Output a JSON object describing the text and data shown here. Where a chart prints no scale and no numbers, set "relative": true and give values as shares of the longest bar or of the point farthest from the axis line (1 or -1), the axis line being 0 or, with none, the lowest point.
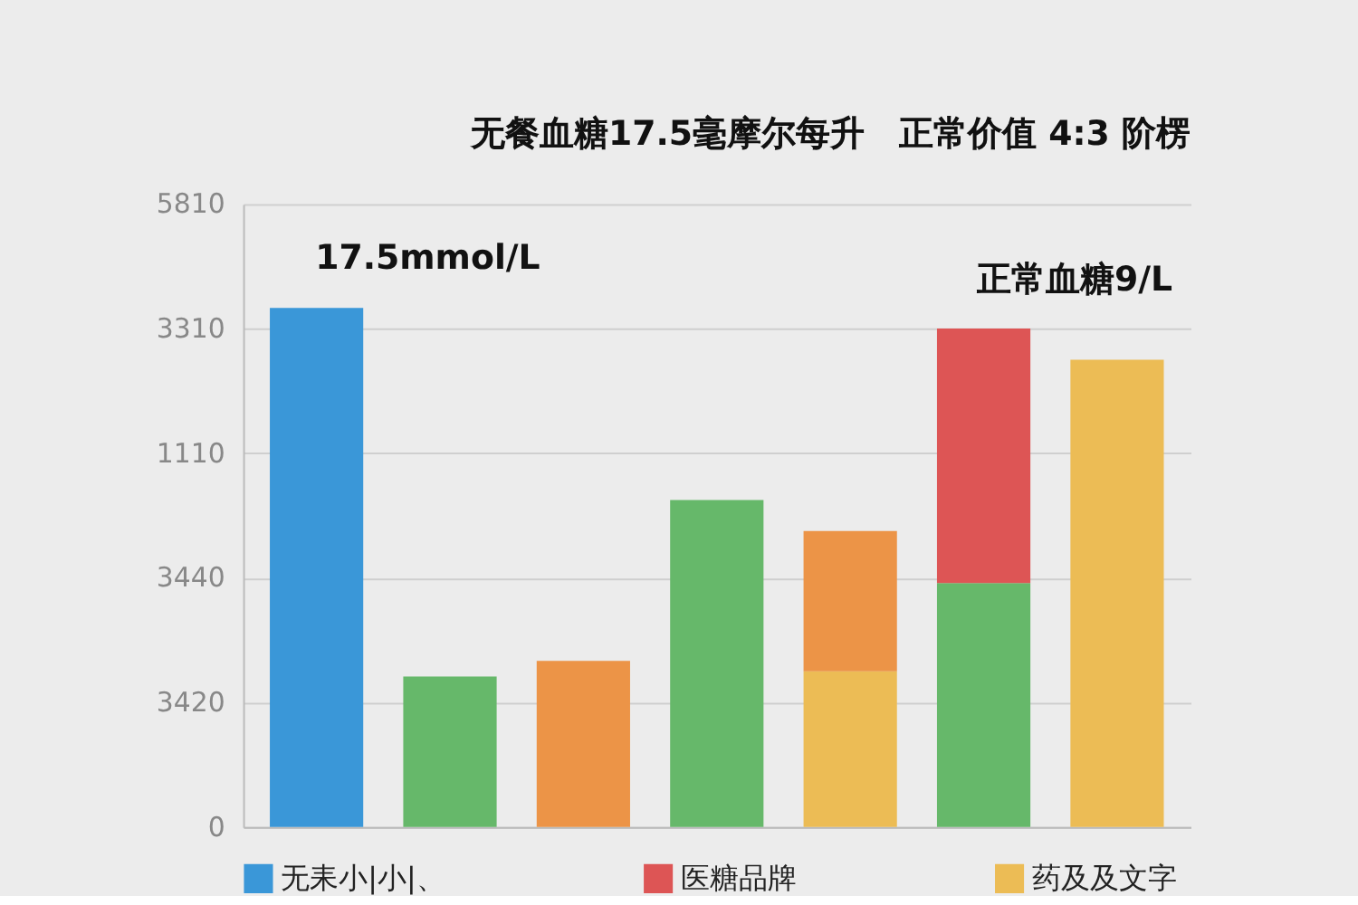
{
  "chart_data": {
    "type": "bar",
    "title": "无餐血糖17.5毫摩尔每升　正常价值 4:3 阶楞",
    "categories": [
      null,
      null,
      null,
      null,
      null,
      null,
      null
    ],
    "stacked": true,
    "relative": true,
    "series": [
      {
        "name": "无耒小|小|、",
        "color": "#3a97d8",
        "values": [
          1,
          null,
          null,
          null,
          null,
          null,
          null
        ]
      },
      {
        "color": "#66b86a",
        "values": [
          null,
          0.29,
          null,
          0.63,
          null,
          0.47,
          null
        ]
      },
      {
        "name": "医糖品牌",
        "color": "#dd5555",
        "values": [
          null,
          null,
          null,
          null,
          null,
          0.49,
          null
        ]
      },
      {
        "name": "药及及文字",
        "color": "#ecbc55",
        "values": [
          null,
          null,
          null,
          null,
          0.3,
          null,
          0.9
        ]
      },
      {
        "color": "#ec9447",
        "values": [
          null,
          null,
          0.32,
          null,
          0.27,
          null,
          null
        ]
      }
    ],
    "annotations": [
      "5810",
      "3310",
      "1110",
      "3440",
      "3420",
      "0",
      "17.5mmol/L",
      "正常血糖9/L"
    ],
    "grid": "y",
    "legend": "bottom",
    "tick_labels": "y"
  }
}
